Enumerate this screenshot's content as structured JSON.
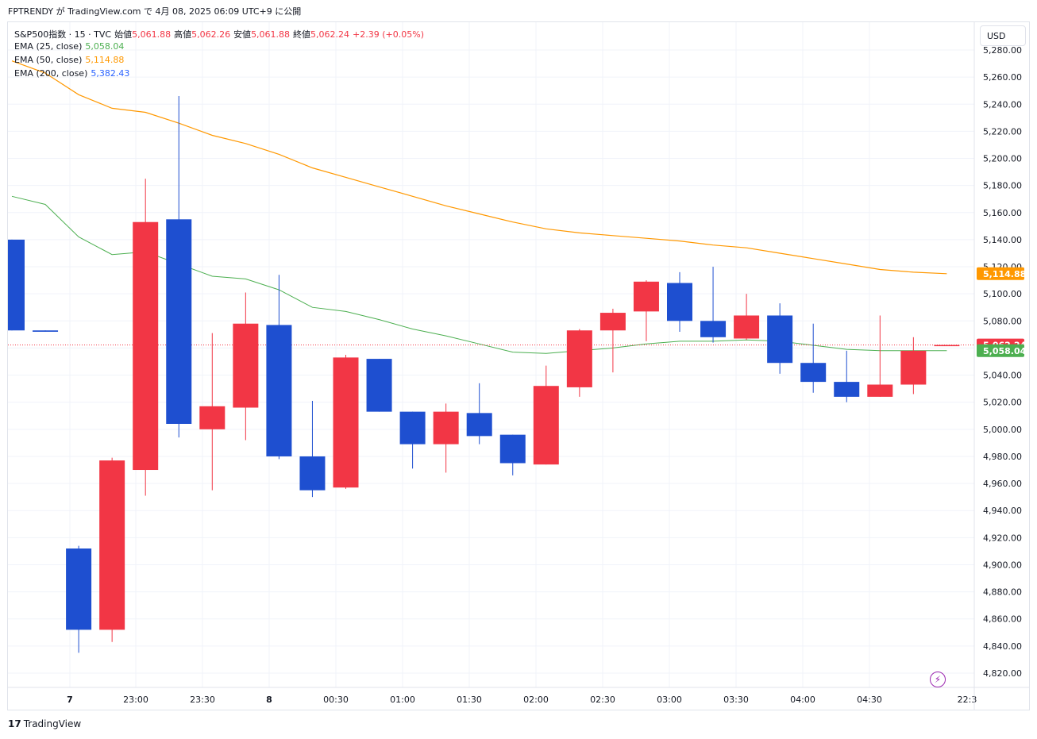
{
  "header": {
    "text": "FPTRENDY が TradingView.com で 4月 08, 2025 06:09 UTC+9 に公開"
  },
  "legend": {
    "symbol": "S&P500指数 · 15 · TVC",
    "open_label": "始値",
    "open_value": "5,061.88",
    "high_label": "高値",
    "high_value": "5,062.26",
    "low_label": "安値",
    "low_value": "5,061.88",
    "close_label": "終値",
    "close_value": "5,062.24",
    "change": "+2.39 (+0.05%)",
    "ema": [
      {
        "label": "EMA (25, close)",
        "value": "5,058.04",
        "color": "#4caf50"
      },
      {
        "label": "EMA (50, close)",
        "value": "5,114.88",
        "color": "#ff9800"
      },
      {
        "label": "EMA (200, close)",
        "value": "5,382.43",
        "color": "#2962ff"
      }
    ]
  },
  "currency": "USD",
  "brand": "TradingView",
  "colors": {
    "up": "#f23645",
    "down": "#1e4fd0",
    "ema25": "#4caf50",
    "ema50": "#ff9800",
    "price_line": "#f23645",
    "grid": "#f0f3fa",
    "axis_text": "#131722"
  },
  "chart_data": {
    "type": "candlestick",
    "x_tick_labels": [
      "7",
      "23:00",
      "23:30",
      "8",
      "00:30",
      "01:00",
      "01:30",
      "02:00",
      "02:30",
      "03:00",
      "03:30",
      "04:00",
      "04:30",
      "22:3"
    ],
    "y_tick_labels": [
      "5,280.00",
      "5,260.00",
      "5,240.00",
      "5,220.00",
      "5,200.00",
      "5,180.00",
      "5,160.00",
      "5,140.00",
      "5,120.00",
      "5,100.00",
      "5,080.00",
      "5,060.00",
      "5,040.00",
      "5,020.00",
      "5,000.00",
      "4,980.00",
      "4,960.00",
      "4,940.00",
      "4,920.00",
      "4,900.00",
      "4,880.00",
      "4,860.00",
      "4,840.00",
      "4,820.00"
    ],
    "ylim": [
      4812,
      5282
    ],
    "candles": [
      {
        "o": 5140,
        "h": 5140,
        "l": 5073,
        "c": 5073
      },
      {
        "o": 5073,
        "h": 5073,
        "l": 5072,
        "c": 5072
      },
      {
        "o": 4912,
        "h": 4914,
        "l": 4835,
        "c": 4852
      },
      {
        "o": 4852,
        "h": 4979,
        "l": 4843,
        "c": 4977
      },
      {
        "o": 4970,
        "h": 5185,
        "l": 4951,
        "c": 5153
      },
      {
        "o": 5155,
        "h": 5246,
        "l": 4994,
        "c": 5004
      },
      {
        "o": 5000,
        "h": 5071,
        "l": 4955,
        "c": 5017
      },
      {
        "o": 5016,
        "h": 5101,
        "l": 4992,
        "c": 5078
      },
      {
        "o": 5077,
        "h": 5114,
        "l": 4978,
        "c": 4980
      },
      {
        "o": 4980,
        "h": 5021,
        "l": 4950,
        "c": 4955
      },
      {
        "o": 4957,
        "h": 5055,
        "l": 4956,
        "c": 5053
      },
      {
        "o": 5052,
        "h": 5052,
        "l": 5013,
        "c": 5013
      },
      {
        "o": 5013,
        "h": 5013,
        "l": 4971,
        "c": 4989
      },
      {
        "o": 4989,
        "h": 5019,
        "l": 4968,
        "c": 5013
      },
      {
        "o": 5012,
        "h": 5034,
        "l": 4989,
        "c": 4995
      },
      {
        "o": 4996,
        "h": 4996,
        "l": 4966,
        "c": 4975
      },
      {
        "o": 4974,
        "h": 5047,
        "l": 4974,
        "c": 5032
      },
      {
        "o": 5031,
        "h": 5074,
        "l": 5024,
        "c": 5073
      },
      {
        "o": 5073,
        "h": 5089,
        "l": 5042,
        "c": 5086
      },
      {
        "o": 5087,
        "h": 5110,
        "l": 5065,
        "c": 5109
      },
      {
        "o": 5108,
        "h": 5116,
        "l": 5072,
        "c": 5080
      },
      {
        "o": 5080,
        "h": 5120,
        "l": 5064,
        "c": 5068
      },
      {
        "o": 5067,
        "h": 5100,
        "l": 5066,
        "c": 5084
      },
      {
        "o": 5084,
        "h": 5093,
        "l": 5041,
        "c": 5049
      },
      {
        "o": 5049,
        "h": 5078,
        "l": 5027,
        "c": 5035
      },
      {
        "o": 5035,
        "h": 5058,
        "l": 5020,
        "c": 5024
      },
      {
        "o": 5024,
        "h": 5084,
        "l": 5024,
        "c": 5033
      },
      {
        "o": 5033,
        "h": 5068,
        "l": 5026,
        "c": 5058
      },
      {
        "o": 5061.88,
        "h": 5062.26,
        "l": 5061.88,
        "c": 5062.24
      }
    ],
    "ema25": [
      5172,
      5166,
      5142,
      5129,
      5131,
      5122,
      5113,
      5111,
      5103,
      5090,
      5087,
      5081,
      5074,
      5069,
      5063,
      5057,
      5056,
      5058,
      5060,
      5063,
      5065,
      5065,
      5066,
      5065,
      5062,
      5059,
      5058,
      5058,
      5058.04
    ],
    "ema50": [
      5272,
      5263,
      5247,
      5237,
      5234,
      5226,
      5217,
      5211,
      5203,
      5193,
      5186,
      5179,
      5172,
      5165,
      5159,
      5153,
      5148,
      5145,
      5143,
      5141,
      5139,
      5136,
      5134,
      5130,
      5126,
      5122,
      5118,
      5116,
      5114.88
    ],
    "price_tags": [
      {
        "label": "5,114.88",
        "value": 5114.88,
        "color": "#ff9800"
      },
      {
        "label": "5,062.24",
        "value": 5062.24,
        "color": "#f23645"
      },
      {
        "label": "5,058.04",
        "value": 5058.04,
        "color": "#4caf50"
      }
    ]
  }
}
